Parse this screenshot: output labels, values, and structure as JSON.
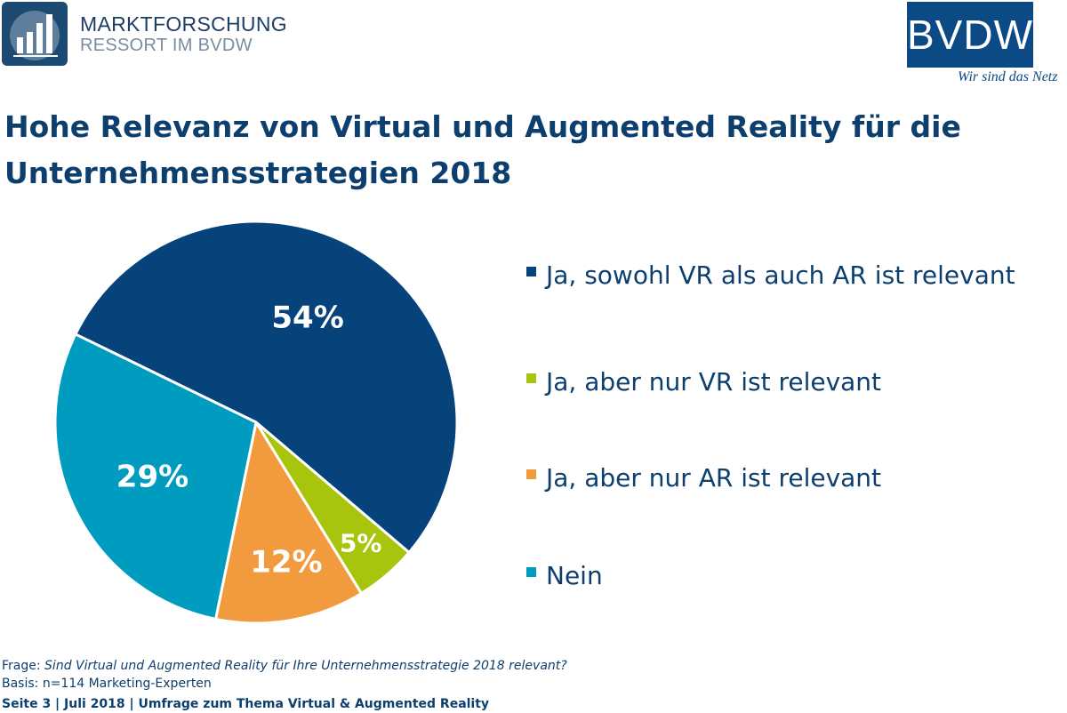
{
  "header": {
    "left_logo_line1": "MARKTFORSCHUNG",
    "left_logo_line2": "RESSORT IM BVDW",
    "right_logo_word": "BVDW",
    "right_logo_tagline": "Wir sind das Netz"
  },
  "colors": {
    "navy": "#06437a",
    "lime": "#a8c40c",
    "orange": "#f29a3e",
    "teal": "#009cc0"
  },
  "chart_data": {
    "type": "pie",
    "title": "Hohe Relevanz von Virtual und Augmented Reality für die Unternehmensstrategien 2018",
    "slices": [
      {
        "name": "Ja, sowohl VR als auch AR ist relevant",
        "value": 54,
        "label": "54%",
        "color": "#06437a"
      },
      {
        "name": "Ja, aber nur VR ist relevant",
        "value": 5,
        "label": "5%",
        "color": "#a8c40c"
      },
      {
        "name": "Ja, aber nur AR ist relevant",
        "value": 12,
        "label": "12%",
        "color": "#f29a3e"
      },
      {
        "name": "Nein",
        "value": 29,
        "label": "29%",
        "color": "#009cc0"
      }
    ],
    "legend_position": "right"
  },
  "footer": {
    "question_prefix": "Frage: ",
    "question": "Sind Virtual und Augmented Reality für Ihre Unternehmensstrategie 2018 relevant?",
    "basis": "Basis: n=114 Marketing-Experten",
    "page_line": "Seite 3 | Juli 2018 | Umfrage zum Thema Virtual & Augmented Reality"
  }
}
